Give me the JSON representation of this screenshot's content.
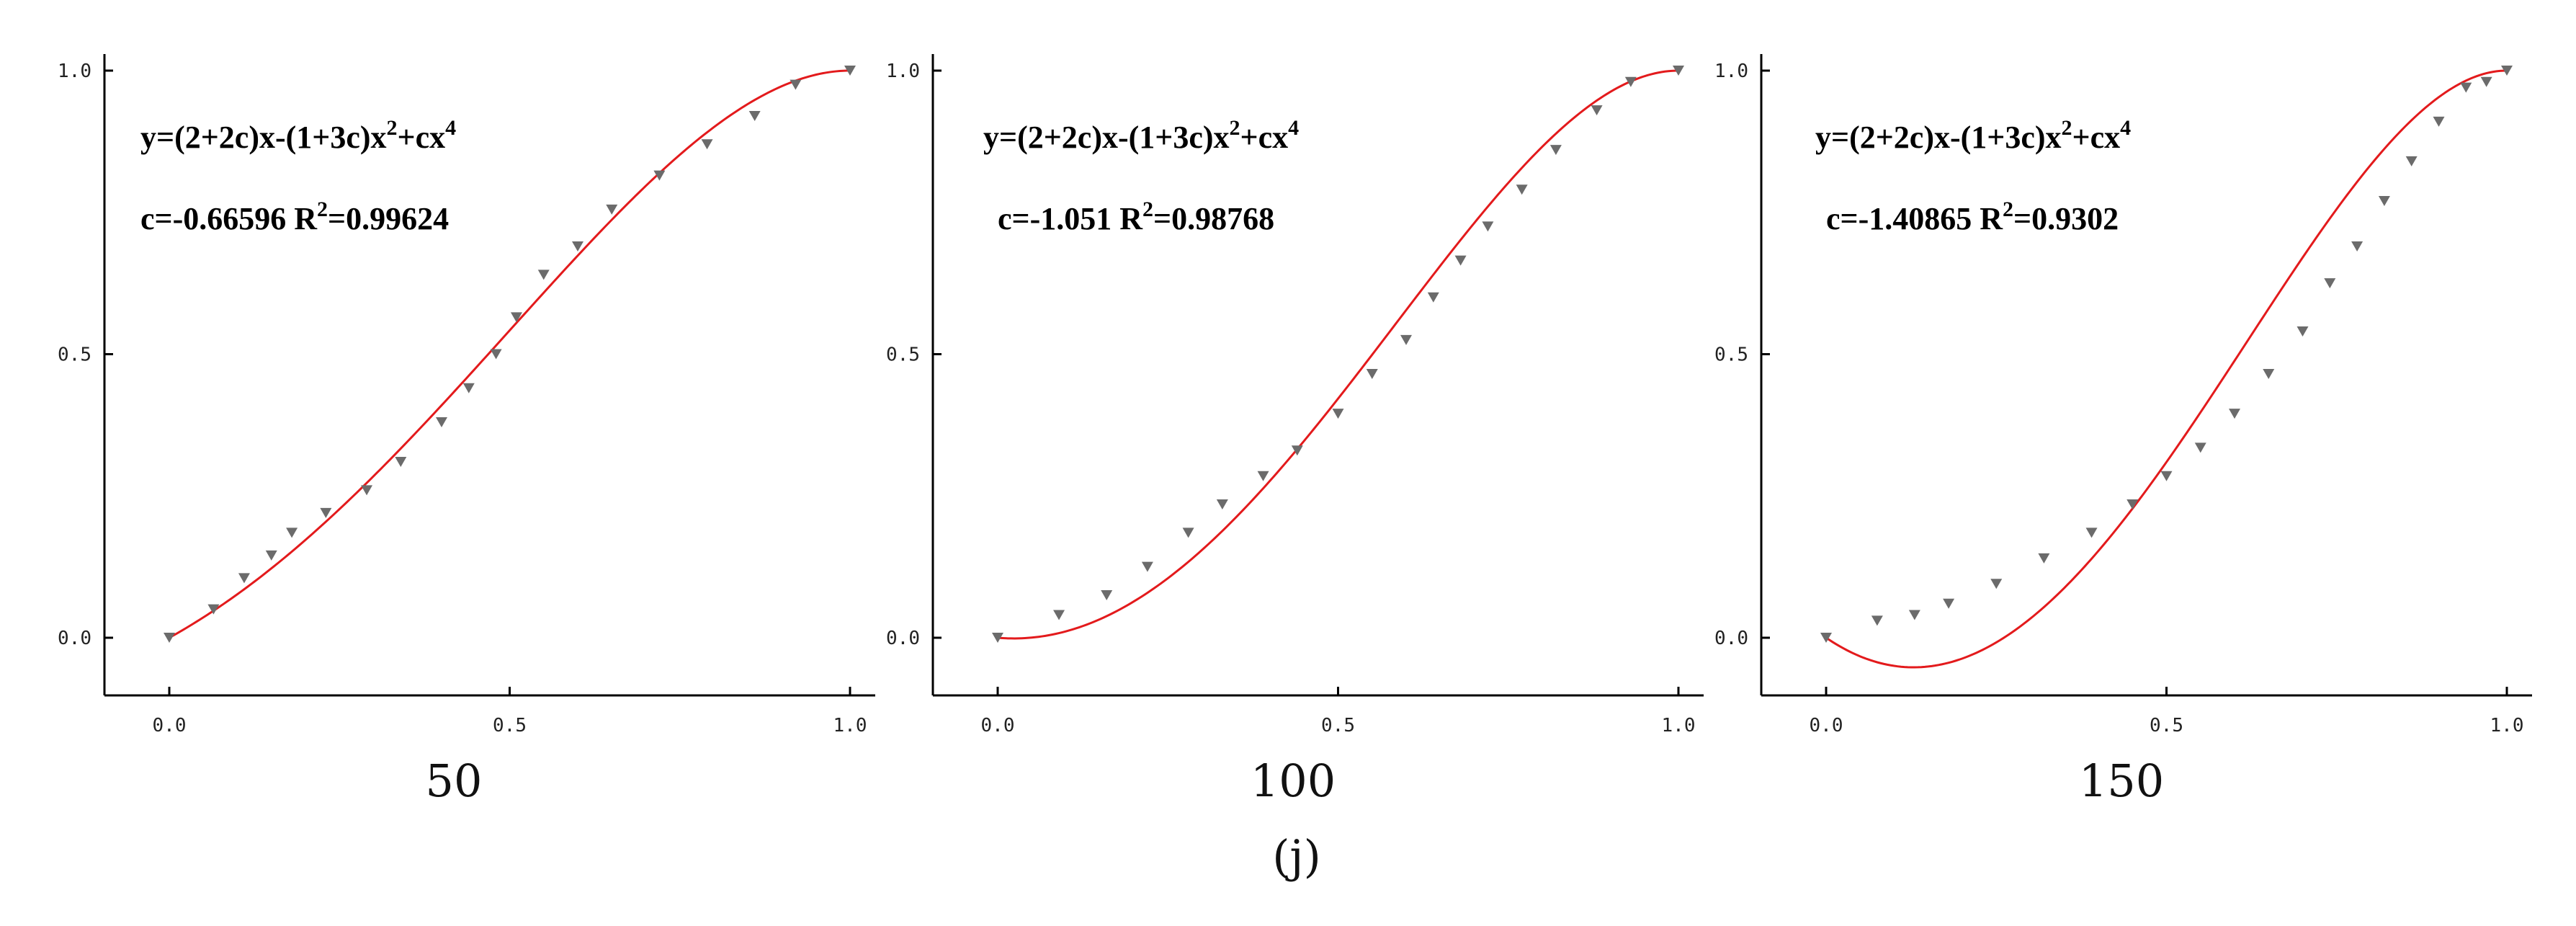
{
  "figure": {
    "caption": "(j)"
  },
  "chart_data": [
    {
      "type": "scatter",
      "caption": "50",
      "xlim": [
        0,
        1
      ],
      "ylim": [
        0,
        1
      ],
      "xticks": [
        "0.0",
        "0.5",
        "1.0"
      ],
      "yticks": [
        "0.0",
        "0.5",
        "1.0"
      ],
      "equation": {
        "base": "y=(2+2c)x-(1+3c)x",
        "exp1": "2",
        "mid": "+cx",
        "exp2": "4"
      },
      "fit_params": {
        "c_label": "c=-0.66596",
        "r_base": "R",
        "r_exp": "2",
        "r_value": "=0.99624"
      },
      "fit": {
        "model": "(2+2c)x-(1+3c)x^2+cx^4",
        "c": -0.66596,
        "color": "#e31a1c"
      },
      "marker_color": "#6b6b6b",
      "series": [
        {
          "x": [
            0.0,
            0.065,
            0.11,
            0.15,
            0.18,
            0.23,
            0.29,
            0.34,
            0.4,
            0.44,
            0.48,
            0.51,
            0.55,
            0.6,
            0.65,
            0.72,
            0.79,
            0.86,
            0.92,
            1.0
          ],
          "y": [
            0.0,
            0.05,
            0.105,
            0.145,
            0.185,
            0.22,
            0.26,
            0.31,
            0.38,
            0.44,
            0.5,
            0.565,
            0.64,
            0.69,
            0.755,
            0.815,
            0.87,
            0.92,
            0.975,
            1.0
          ]
        }
      ]
    },
    {
      "type": "scatter",
      "caption": "100",
      "xlim": [
        0,
        1
      ],
      "ylim": [
        0,
        1
      ],
      "xticks": [
        "0.0",
        "0.5",
        "1.0"
      ],
      "yticks": [
        "0.0",
        "0.5",
        "1.0"
      ],
      "equation": {
        "base": "y=(2+2c)x-(1+3c)x",
        "exp1": "2",
        "mid": "+cx",
        "exp2": "4"
      },
      "fit_params": {
        "c_label": "c=-1.051",
        "r_base": "R",
        "r_exp": "2",
        "r_value": "=0.98768"
      },
      "fit": {
        "model": "(2+2c)x-(1+3c)x^2+cx^4",
        "c": -1.051,
        "color": "#e31a1c"
      },
      "marker_color": "#6b6b6b",
      "series": [
        {
          "x": [
            0.0,
            0.09,
            0.16,
            0.22,
            0.28,
            0.33,
            0.39,
            0.44,
            0.5,
            0.55,
            0.6,
            0.64,
            0.68,
            0.72,
            0.77,
            0.82,
            0.88,
            0.93,
            1.0
          ],
          "y": [
            0.0,
            0.04,
            0.075,
            0.125,
            0.185,
            0.235,
            0.285,
            0.33,
            0.395,
            0.465,
            0.525,
            0.6,
            0.665,
            0.725,
            0.79,
            0.86,
            0.93,
            0.98,
            1.0
          ]
        }
      ]
    },
    {
      "type": "scatter",
      "caption": "150",
      "xlim": [
        0,
        1
      ],
      "ylim": [
        0,
        1
      ],
      "xticks": [
        "0.0",
        "0.5",
        "1.0"
      ],
      "yticks": [
        "0.0",
        "0.5",
        "1.0"
      ],
      "equation": {
        "base": "y=(2+2c)x-(1+3c)x",
        "exp1": "2",
        "mid": "+cx",
        "exp2": "4"
      },
      "fit_params": {
        "c_label": "c=-1.40865",
        "r_base": "R",
        "r_exp": "2",
        "r_value": "=0.9302"
      },
      "fit": {
        "model": "(2+2c)x-(1+3c)x^2+cx^4",
        "c": -1.40865,
        "color": "#e31a1c"
      },
      "marker_color": "#6b6b6b",
      "series": [
        {
          "x": [
            0.0,
            0.075,
            0.13,
            0.18,
            0.25,
            0.32,
            0.39,
            0.45,
            0.5,
            0.55,
            0.6,
            0.65,
            0.7,
            0.74,
            0.78,
            0.82,
            0.86,
            0.9,
            0.94,
            0.97,
            1.0
          ],
          "y": [
            0.0,
            0.03,
            0.04,
            0.06,
            0.095,
            0.14,
            0.185,
            0.235,
            0.285,
            0.335,
            0.395,
            0.465,
            0.54,
            0.625,
            0.69,
            0.77,
            0.84,
            0.91,
            0.97,
            0.98,
            1.0
          ]
        }
      ]
    }
  ]
}
